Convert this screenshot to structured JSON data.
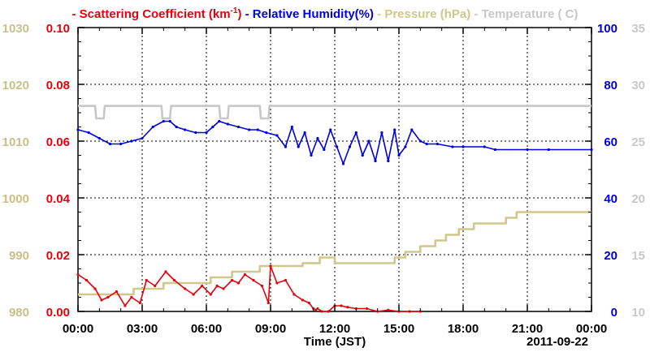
{
  "chart_data": {
    "type": "line",
    "title_date": "2011-09-22",
    "xlabel": "Time (JST)",
    "x_ticks": [
      "00:00",
      "03:00",
      "06:00",
      "09:00",
      "12:00",
      "15:00",
      "18:00",
      "21:00",
      "00:00"
    ],
    "x_range_hours": [
      0,
      24
    ],
    "grid": true,
    "legend": [
      {
        "dash": "-",
        "label": "Scattering Coefficient (km",
        "sup": "-1",
        "tail": ")",
        "color": "#e8000b"
      },
      {
        "dash": "-",
        "label": "Relative Humidity(%)",
        "sup": "",
        "tail": "",
        "color": "#0000dd"
      },
      {
        "dash": "-",
        "label": "Pressure (hPa)",
        "sup": "",
        "tail": "",
        "color": "#cfc88a"
      },
      {
        "dash": "-",
        "label": "Temperature (",
        "sup": "",
        "tail": "C)",
        "color": "#c8c8c8"
      }
    ],
    "axes": {
      "pressure": {
        "side": "left-outer",
        "color": "#c9c089",
        "range": [
          980,
          1030
        ],
        "ticks": [
          "980",
          "990",
          "1000",
          "1010",
          "1020",
          "1030"
        ]
      },
      "scattering": {
        "side": "left-inner",
        "color": "#e8000b",
        "range": [
          0,
          0.1
        ],
        "ticks": [
          "0.00",
          "0.02",
          "0.04",
          "0.06",
          "0.08",
          "0.10"
        ]
      },
      "humidity": {
        "side": "right-inner",
        "color": "#0000dd",
        "range": [
          0,
          100
        ],
        "ticks": [
          "0",
          "20",
          "40",
          "60",
          "80",
          "100"
        ]
      },
      "temperature": {
        "side": "right-outer",
        "color": "#c8c8c8",
        "range": [
          10,
          35
        ],
        "ticks": [
          "10",
          "15",
          "20",
          "25",
          "30",
          "35"
        ]
      }
    },
    "series": [
      {
        "name": "Temperature",
        "axis": "temperature",
        "color": "#c8c8c8",
        "x": [
          0,
          0.8,
          0.85,
          1.2,
          1.25,
          3.9,
          3.95,
          4.3,
          4.35,
          6.6,
          6.65,
          7.0,
          7.05,
          8.5,
          8.55,
          8.9,
          8.95,
          24
        ],
        "y": [
          28.1,
          28.1,
          27.0,
          27.0,
          28.1,
          28.1,
          27.0,
          27.0,
          28.1,
          28.1,
          27.0,
          27.0,
          28.1,
          28.1,
          27.0,
          27.0,
          28.1,
          28.1
        ]
      },
      {
        "name": "Relative Humidity",
        "axis": "humidity",
        "color": "#0000dd",
        "x": [
          0,
          0.5,
          1,
          1.5,
          2,
          2.5,
          3,
          3.5,
          4,
          4.3,
          4.6,
          5,
          5.5,
          6,
          6.3,
          6.6,
          7,
          7.5,
          8,
          8.4,
          8.8,
          9.3,
          9.7,
          10,
          10.3,
          10.6,
          10.9,
          11.2,
          11.5,
          11.8,
          12.1,
          12.4,
          12.7,
          13.0,
          13.3,
          13.6,
          13.9,
          14.2,
          14.5,
          14.8,
          15.0,
          15.3,
          15.6,
          16.0,
          16.3,
          16.8,
          17.5,
          18,
          19,
          19.5,
          21,
          22,
          24
        ],
        "y": [
          64,
          63,
          61,
          59,
          59,
          60,
          61,
          65,
          67,
          67,
          65,
          64,
          63,
          63,
          65,
          67,
          66,
          65,
          64,
          64,
          63,
          62,
          58,
          65,
          58,
          63,
          55,
          61,
          57,
          64,
          58,
          52,
          58,
          63,
          55,
          60,
          53,
          63,
          53,
          64,
          55,
          58,
          64,
          60,
          59,
          59,
          58,
          58,
          58,
          57,
          57,
          57,
          57
        ]
      },
      {
        "name": "Pressure",
        "axis": "pressure",
        "color": "#cfc88a",
        "x": [
          0,
          2.6,
          2.6,
          4.0,
          4.0,
          6.2,
          6.2,
          7.2,
          7.2,
          8.5,
          8.5,
          10.5,
          10.5,
          11.3,
          11.3,
          12.0,
          12.0,
          14.8,
          14.8,
          15.3,
          15.3,
          16.0,
          16.0,
          16.7,
          16.7,
          17.2,
          17.2,
          17.8,
          17.8,
          18.5,
          18.5,
          20.0,
          20.0,
          20.5,
          20.5,
          24
        ],
        "y": [
          983,
          983,
          984,
          984,
          985,
          985,
          986,
          986,
          987,
          987,
          988,
          988,
          988.5,
          988.5,
          989.5,
          989.5,
          988.5,
          988.5,
          989.5,
          989.5,
          990.5,
          990.5,
          991.5,
          991.5,
          992.5,
          992.5,
          993.5,
          993.5,
          994.5,
          994.5,
          995.5,
          995.5,
          996.5,
          996.5,
          997.5,
          997.5
        ]
      },
      {
        "name": "Scattering Coefficient",
        "axis": "scattering",
        "color": "#e8000b",
        "x": [
          0,
          0.4,
          0.8,
          1.1,
          1.4,
          1.8,
          2.2,
          2.5,
          2.9,
          3.2,
          3.6,
          4.1,
          4.5,
          5.0,
          5.4,
          5.8,
          6.2,
          6.5,
          6.8,
          7.2,
          7.5,
          7.8,
          8.2,
          8.6,
          8.9,
          9.0,
          9.3,
          9.7,
          10.1,
          10.5,
          10.8,
          11.0,
          11.1,
          11.2,
          11.4,
          11.7,
          12.0,
          12.3,
          12.6,
          13.0,
          13.5,
          14.0,
          14.5,
          15.0,
          15.5,
          16.0
        ],
        "y": [
          0.013,
          0.011,
          0.008,
          0.004,
          0.005,
          0.007,
          0.002,
          0.005,
          0.003,
          0.011,
          0.009,
          0.014,
          0.011,
          0.008,
          0.006,
          0.009,
          0.006,
          0.009,
          0.008,
          0.011,
          0.01,
          0.013,
          0.011,
          0.009,
          0.003,
          0.016,
          0.01,
          0.011,
          0.006,
          0.004,
          0.003,
          0.001,
          0.0005,
          0.001,
          0.0,
          0.0,
          0.002,
          0.002,
          0.0015,
          0.001,
          0.001,
          0.0,
          0.0005,
          0.0,
          0.0,
          0.0
        ]
      }
    ]
  }
}
